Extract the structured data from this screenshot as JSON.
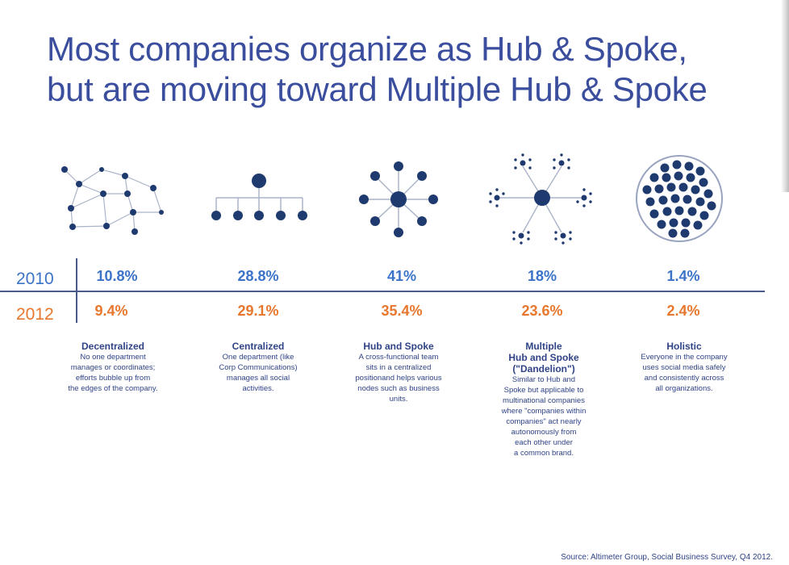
{
  "title": {
    "line1": "Most companies organize as Hub & Spoke,",
    "line2": "but are moving toward Multiple Hub & Spoke"
  },
  "years": {
    "y2010": "2010",
    "y2012": "2012"
  },
  "colors": {
    "navy": "#1f3a6e",
    "blue": "#3b73c8",
    "orange": "#e8772e",
    "title": "#3b4e9e"
  },
  "models": [
    {
      "pct2010": "10.8%",
      "pct2012": "9.4%",
      "name": "Decentralized",
      "desc": [
        "No one department",
        "manages or coordinates;",
        "efforts bubble up from",
        "the edges of the company."
      ]
    },
    {
      "pct2010": "28.8%",
      "pct2012": "29.1%",
      "name": "Centralized",
      "desc": [
        "One department (like",
        "Corp Communications)",
        "manages all social",
        "activities."
      ]
    },
    {
      "pct2010": "41%",
      "pct2012": "35.4%",
      "name": "Hub and Spoke",
      "desc": [
        "A cross-functional team",
        "sits in a centralized",
        "positionand helps various",
        "nodes such as business",
        "units."
      ]
    },
    {
      "pct2010": "18%",
      "pct2012": "23.6%",
      "name": "Multiple Hub and Spoke (\"Dandelion\")",
      "name_lines": [
        "Multiple",
        "Hub and Spoke",
        "(\"Dandelion\")"
      ],
      "desc": [
        "Similar to Hub and",
        "Spoke but applicable to",
        "multinational companies",
        "where \"companies within",
        "companies\" act nearly",
        "autonomously from",
        "each other under",
        "a common brand."
      ]
    },
    {
      "pct2010": "1.4%",
      "pct2012": "2.4%",
      "name": "Holistic",
      "desc": [
        "Everyone in the company",
        "uses social media safely",
        "and consistently across",
        "all organizations."
      ]
    }
  ],
  "source": "Source: Altimeter Group, Social Business Survey, Q4 2012."
}
